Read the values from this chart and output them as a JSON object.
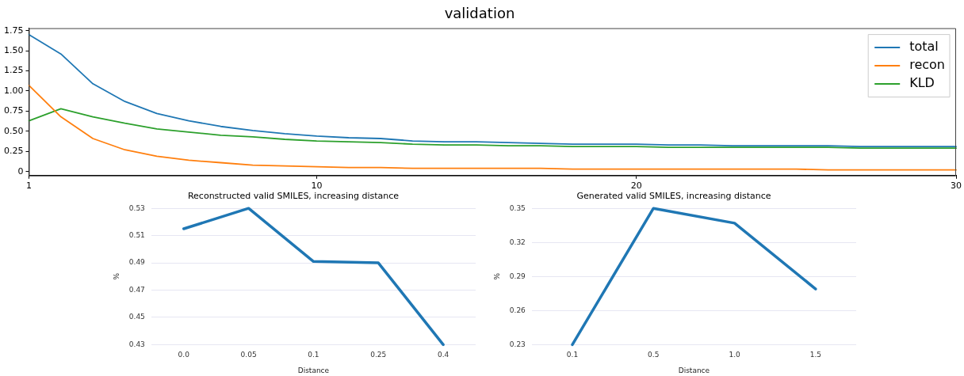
{
  "chart_data": [
    {
      "type": "line",
      "title": "validation",
      "x": [
        1,
        2,
        3,
        4,
        5,
        6,
        7,
        8,
        9,
        10,
        11,
        12,
        13,
        14,
        15,
        16,
        17,
        18,
        19,
        20,
        21,
        22,
        23,
        24,
        25,
        26,
        27,
        28,
        29,
        30
      ],
      "xlim": [
        1,
        30
      ],
      "xticks": [
        1,
        10,
        20,
        30
      ],
      "ylim": [
        -0.05,
        1.78
      ],
      "yticks": [
        0.0,
        {
          "value": 0.25,
          "label": "0.25"
        },
        {
          "value": 0.5,
          "label": "0.50"
        },
        {
          "value": 0.75,
          "label": "0.75"
        },
        {
          "value": 1.0,
          "label": "1.00"
        },
        {
          "value": 1.25,
          "label": "1.25"
        },
        {
          "value": 1.5,
          "label": "1.50"
        },
        {
          "value": 1.75,
          "label": "1.75"
        }
      ],
      "grid": false,
      "legend": "top right",
      "series": [
        {
          "name": "total",
          "color": "#1f77b4",
          "values": [
            1.7,
            1.46,
            1.09,
            0.87,
            0.72,
            0.63,
            0.56,
            0.51,
            0.47,
            0.44,
            0.42,
            0.41,
            0.38,
            0.37,
            0.37,
            0.36,
            0.35,
            0.34,
            0.34,
            0.34,
            0.33,
            0.33,
            0.32,
            0.32,
            0.32,
            0.32,
            0.31,
            0.31,
            0.31,
            0.31
          ]
        },
        {
          "name": "recon",
          "color": "#ff7f0e",
          "values": [
            1.07,
            0.68,
            0.41,
            0.27,
            0.19,
            0.14,
            0.11,
            0.08,
            0.07,
            0.06,
            0.05,
            0.05,
            0.04,
            0.04,
            0.04,
            0.04,
            0.04,
            0.03,
            0.03,
            0.03,
            0.03,
            0.03,
            0.03,
            0.03,
            0.03,
            0.02,
            0.02,
            0.02,
            0.02,
            0.02
          ]
        },
        {
          "name": "KLD",
          "color": "#2ca02c",
          "values": [
            0.63,
            0.78,
            0.68,
            0.6,
            0.53,
            0.49,
            0.45,
            0.43,
            0.4,
            0.38,
            0.37,
            0.36,
            0.34,
            0.33,
            0.33,
            0.32,
            0.32,
            0.31,
            0.31,
            0.31,
            0.3,
            0.3,
            0.3,
            0.3,
            0.3,
            0.3,
            0.29,
            0.29,
            0.29,
            0.29
          ]
        }
      ]
    },
    {
      "type": "line",
      "title": "Reconstructed valid SMILES, increasing distance",
      "xlabel": "Distance",
      "ylabel": "%",
      "categories": [
        "0.0",
        "0.05",
        "0.1",
        "0.25",
        "0.4"
      ],
      "ylim": [
        0.43,
        0.53
      ],
      "yticks": [
        0.43,
        0.45,
        0.47,
        0.49,
        0.51,
        0.53
      ],
      "grid": "y",
      "series": [
        {
          "color": "#1f77b4",
          "values": [
            0.515,
            0.53,
            0.491,
            0.49,
            0.43
          ]
        }
      ]
    },
    {
      "type": "line",
      "title": "Generated valid SMILES, increasing distance",
      "xlabel": "Distance",
      "ylabel": "%",
      "categories": [
        "0.1",
        "0.5",
        "1.0",
        "1.5"
      ],
      "ylim": [
        0.23,
        0.35
      ],
      "yticks": [
        0.23,
        0.26,
        0.29,
        0.32,
        0.35
      ],
      "grid": "y",
      "series": [
        {
          "color": "#1f77b4",
          "values": [
            0.23,
            0.35,
            0.337,
            0.279
          ]
        }
      ]
    }
  ]
}
